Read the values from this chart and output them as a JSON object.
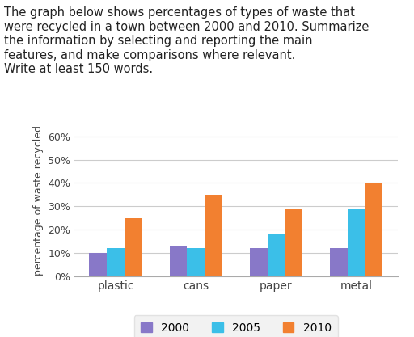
{
  "categories": [
    "plastic",
    "cans",
    "paper",
    "metal"
  ],
  "years": [
    "2000",
    "2005",
    "2010"
  ],
  "values": {
    "2000": [
      10,
      13,
      12,
      12
    ],
    "2005": [
      12,
      12,
      18,
      29
    ],
    "2010": [
      25,
      35,
      29,
      40
    ]
  },
  "colors": {
    "2000": "#8878c8",
    "2005": "#3bbfe8",
    "2010": "#f28030"
  },
  "ylabel": "percentage of waste recycled",
  "ytick_labels": [
    "0%",
    "10%",
    "20%",
    "30%",
    "40%",
    "50%",
    "60%"
  ],
  "ytick_values": [
    0,
    10,
    20,
    30,
    40,
    50,
    60
  ],
  "ylim": [
    0,
    65
  ],
  "title_text": "The graph below shows percentages of types of waste that\nwere recycled in a town between 2000 and 2010. Summarize\nthe information by selecting and reporting the main\nfeatures, and make comparisons where relevant.\nWrite at least 150 words.",
  "title_fontsize": 10.5,
  "bar_width": 0.22,
  "legend_bg": "#f0f0f0",
  "bg_color": "#ffffff",
  "grid_color": "#cccccc"
}
